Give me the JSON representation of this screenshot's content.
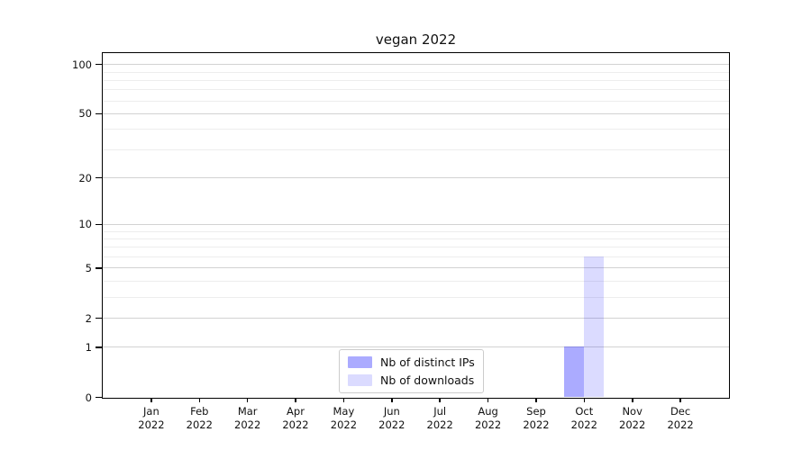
{
  "chart_data": {
    "type": "bar",
    "title": "vegan 2022",
    "categories": [
      "Jan",
      "Feb",
      "Mar",
      "Apr",
      "May",
      "Jun",
      "Jul",
      "Aug",
      "Sep",
      "Oct",
      "Nov",
      "Dec"
    ],
    "x_year_label": "2022",
    "series": [
      {
        "name": "Nb of distinct IPs",
        "color": "rgba(0,0,255,0.33)",
        "values": [
          0,
          0,
          0,
          0,
          0,
          0,
          0,
          0,
          0,
          1,
          0,
          0
        ]
      },
      {
        "name": "Nb of downloads",
        "color": "rgba(0,0,255,0.14)",
        "values": [
          0,
          0,
          0,
          0,
          0,
          0,
          0,
          0,
          0,
          6,
          0,
          0
        ]
      }
    ],
    "xlabel": "",
    "ylabel": "",
    "yscale": "log1p",
    "ylim": [
      0,
      116.5
    ],
    "yticks": [
      0,
      1,
      2,
      5,
      10,
      20,
      50,
      100
    ],
    "yticks_minor": [
      3,
      4,
      6,
      7,
      8,
      9,
      30,
      40,
      60,
      70,
      80,
      90
    ],
    "grid": "horizontal",
    "legend_position": "inside lower-center",
    "colors": {
      "axis": "#000000",
      "grid_major": "#d2d2d2",
      "grid_minor": "#ededed",
      "legend_border": "#cccccc"
    }
  }
}
